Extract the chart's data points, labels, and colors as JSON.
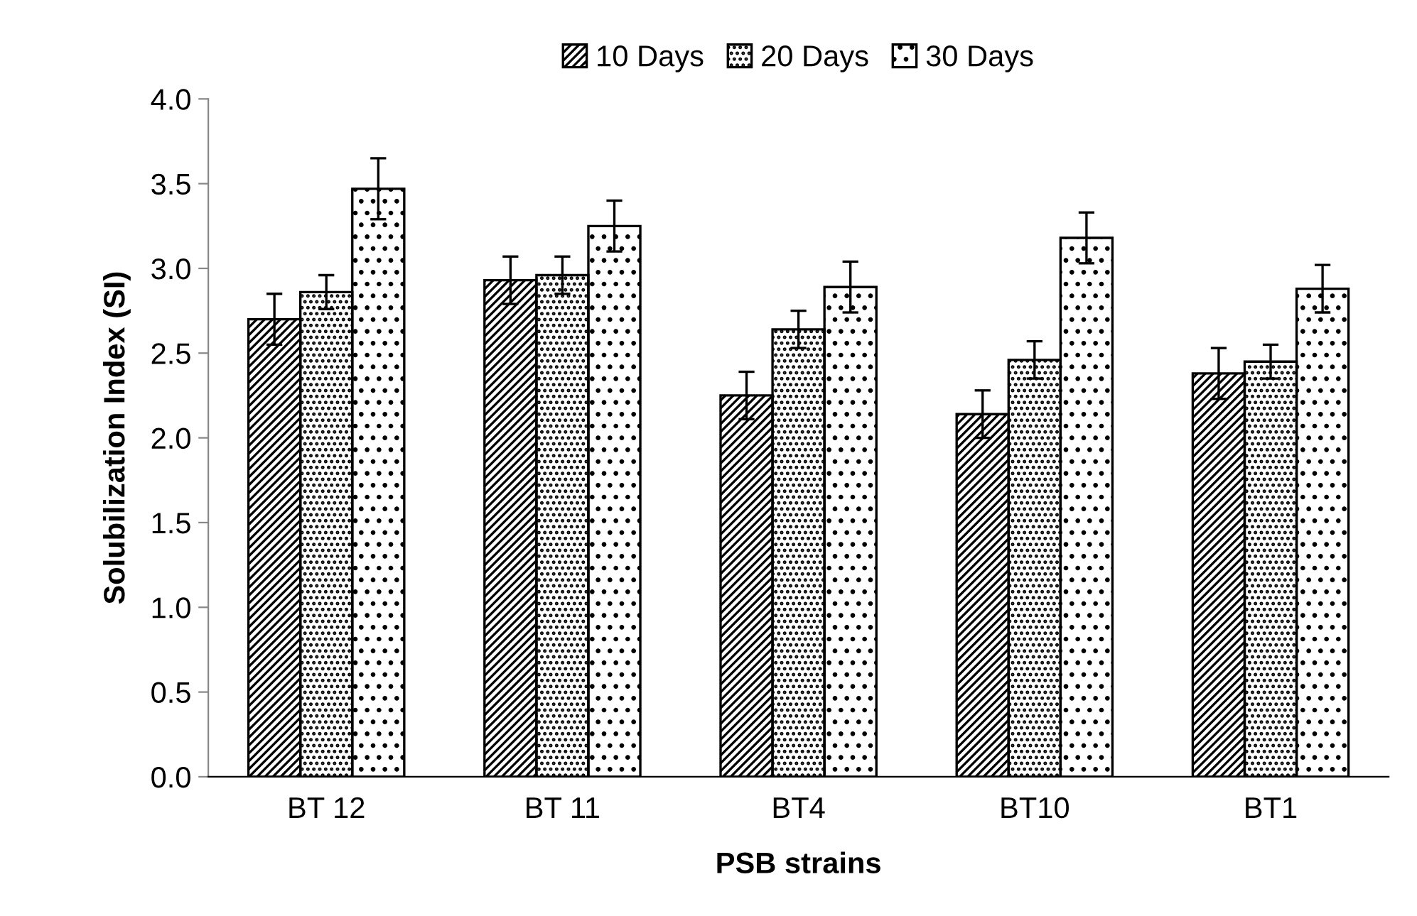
{
  "chart_data": {
    "type": "bar",
    "xlabel": "PSB strains",
    "ylabel": "Solubilization Index (SI)",
    "categories": [
      "BT 12",
      "BT 11",
      "BT4",
      "BT10",
      "BT1"
    ],
    "series": [
      {
        "name": "10 Days",
        "color": "#000000",
        "values": [
          2.7,
          2.93,
          2.25,
          2.14,
          2.38
        ],
        "errors": [
          0.15,
          0.14,
          0.14,
          0.14,
          0.15
        ]
      },
      {
        "name": "20 Days",
        "color": "#000000",
        "values": [
          2.86,
          2.96,
          2.64,
          2.46,
          2.45
        ],
        "errors": [
          0.1,
          0.11,
          0.11,
          0.11,
          0.1
        ]
      },
      {
        "name": "30 Days",
        "color": "#000000",
        "values": [
          3.47,
          3.25,
          2.89,
          3.18,
          2.88
        ],
        "errors": [
          0.18,
          0.15,
          0.15,
          0.15,
          0.14
        ]
      }
    ],
    "ylim": [
      0,
      4.0
    ],
    "yticks": [
      {
        "value": 0,
        "label": "0.0"
      },
      {
        "value": 0.5,
        "label": "0.5"
      },
      {
        "value": 1.0,
        "label": "1.0"
      },
      {
        "value": 1.5,
        "label": "1.5"
      },
      {
        "value": 2.0,
        "label": "2.0"
      },
      {
        "value": 2.5,
        "label": "2.5"
      },
      {
        "value": 3.0,
        "label": "3.0"
      },
      {
        "value": 3.5,
        "label": "3.5"
      },
      {
        "value": 4.0,
        "label": "4.0"
      }
    ],
    "grid": false,
    "legend": "top"
  }
}
